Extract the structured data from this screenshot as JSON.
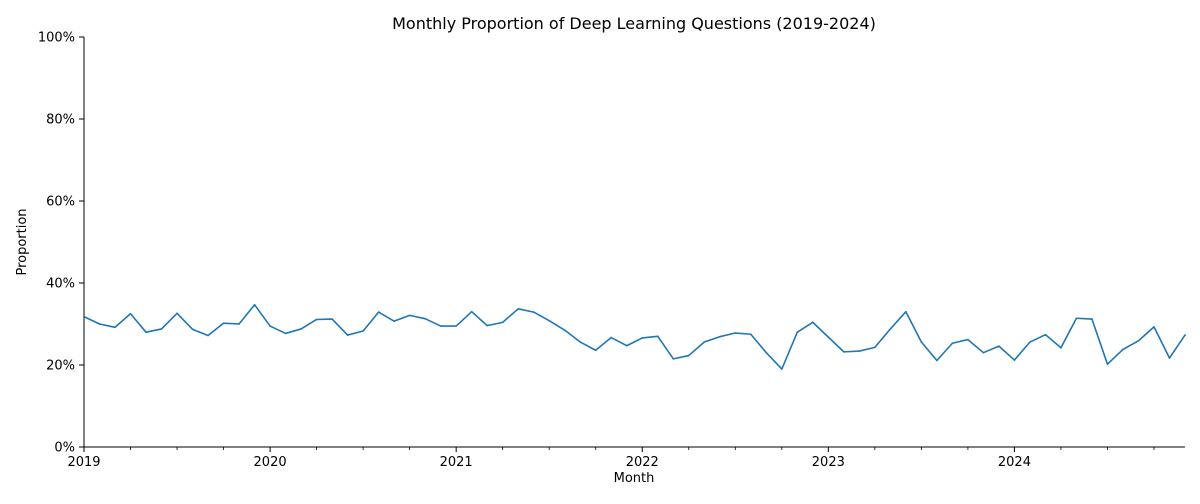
{
  "chart_data": {
    "type": "line",
    "title": "Monthly Proportion of Deep Learning Questions (2019-2024)",
    "xlabel": "Month",
    "ylabel": "Proportion",
    "ylim": [
      0,
      1
    ],
    "xlim": [
      "2019-01",
      "2024-12"
    ],
    "y_tick_labels": [
      "0%",
      "20%",
      "40%",
      "60%",
      "80%",
      "100%"
    ],
    "y_tick_values": [
      0,
      0.2,
      0.4,
      0.6,
      0.8,
      1.0
    ],
    "x_tick_labels": [
      "2019",
      "2020",
      "2021",
      "2022",
      "2023",
      "2024"
    ],
    "grid": false,
    "series": [
      {
        "color": "#1f77b4",
        "x": [
          "2019-01",
          "2019-02",
          "2019-03",
          "2019-04",
          "2019-05",
          "2019-06",
          "2019-07",
          "2019-08",
          "2019-09",
          "2019-10",
          "2019-11",
          "2019-12",
          "2020-01",
          "2020-02",
          "2020-03",
          "2020-04",
          "2020-05",
          "2020-06",
          "2020-07",
          "2020-08",
          "2020-09",
          "2020-10",
          "2020-11",
          "2020-12",
          "2021-01",
          "2021-02",
          "2021-03",
          "2021-04",
          "2021-05",
          "2021-06",
          "2021-07",
          "2021-08",
          "2021-09",
          "2021-10",
          "2021-11",
          "2021-12",
          "2022-01",
          "2022-02",
          "2022-03",
          "2022-04",
          "2022-05",
          "2022-06",
          "2022-07",
          "2022-08",
          "2022-09",
          "2022-10",
          "2022-11",
          "2022-12",
          "2023-01",
          "2023-02",
          "2023-03",
          "2023-04",
          "2023-05",
          "2023-06",
          "2023-07",
          "2023-08",
          "2023-09",
          "2023-10",
          "2023-11",
          "2023-12",
          "2024-01",
          "2024-02",
          "2024-03",
          "2024-04",
          "2024-05",
          "2024-06",
          "2024-07",
          "2024-08",
          "2024-09",
          "2024-10",
          "2024-11",
          "2024-12"
        ],
        "values": [
          0.318,
          0.3,
          0.292,
          0.325,
          0.28,
          0.288,
          0.326,
          0.287,
          0.272,
          0.302,
          0.3,
          0.347,
          0.295,
          0.277,
          0.288,
          0.311,
          0.312,
          0.273,
          0.283,
          0.329,
          0.307,
          0.321,
          0.313,
          0.295,
          0.295,
          0.33,
          0.296,
          0.304,
          0.337,
          0.329,
          0.308,
          0.285,
          0.256,
          0.236,
          0.267,
          0.247,
          0.266,
          0.27,
          0.215,
          0.223,
          0.256,
          0.269,
          0.278,
          0.275,
          0.23,
          0.19,
          0.28,
          0.304,
          0.268,
          0.232,
          0.234,
          0.243,
          0.288,
          0.33,
          0.256,
          0.211,
          0.253,
          0.262,
          0.23,
          0.246,
          0.212,
          0.256,
          0.274,
          0.242,
          0.314,
          0.312,
          0.202,
          0.238,
          0.259,
          0.293,
          0.217,
          0.273
        ]
      }
    ]
  }
}
